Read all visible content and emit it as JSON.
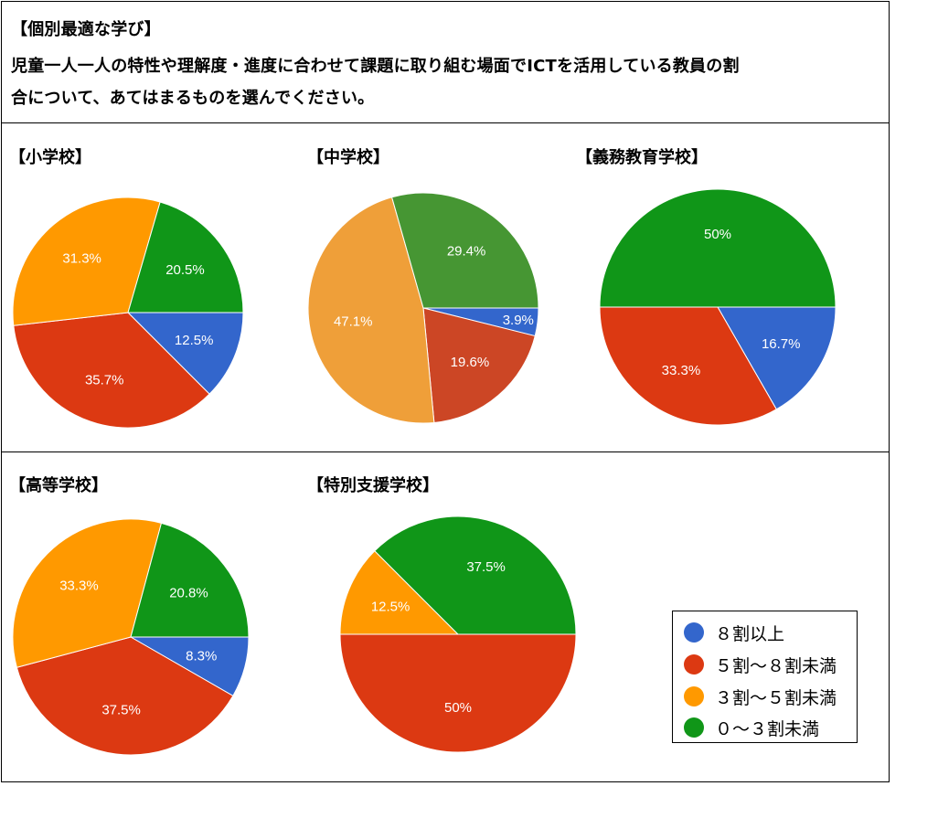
{
  "header": {
    "tag": "【個別最適な学び】",
    "question_line1": "児童一人一人の特性や理解度・進度に合わせて課題に取り組む場面でICTを活用している教員の割",
    "question_line2": "合について、あてはまるものを選んでください。"
  },
  "colors": {
    "blue": "#3366cc",
    "red": "#dc3912",
    "orange": "#ff9900",
    "green": "#109618",
    "ms_orange": "#ef9f39",
    "ms_red": "#cc4625",
    "ms_green": "#469633"
  },
  "legend": {
    "items": [
      {
        "label": "８割以上",
        "color": "#3366cc"
      },
      {
        "label": "５割～８割未満",
        "color": "#dc3912"
      },
      {
        "label": "３割～５割未満",
        "color": "#ff9900"
      },
      {
        "label": "０～３割未満",
        "color": "#109618"
      }
    ]
  },
  "chart_data": [
    {
      "type": "pie",
      "title": "【小学校】",
      "labels": [
        "８割以上",
        "５割～８割未満",
        "３割～５割未満",
        "０～３割未満"
      ],
      "values": [
        12.5,
        35.7,
        31.3,
        20.5
      ],
      "value_labels": [
        "12.5%",
        "35.7%",
        "31.3%",
        "20.5%"
      ],
      "colors": [
        "#3366cc",
        "#dc3912",
        "#ff9900",
        "#109618"
      ]
    },
    {
      "type": "pie",
      "title": "【中学校】",
      "labels": [
        "８割以上",
        "５割～８割未満",
        "３割～５割未満",
        "０～３割未満"
      ],
      "values": [
        3.9,
        19.6,
        47.1,
        29.4
      ],
      "value_labels": [
        "3.9%",
        "19.6%",
        "47.1%",
        "29.4%"
      ],
      "colors": [
        "#3366cc",
        "#cc4625",
        "#ef9f39",
        "#469633"
      ]
    },
    {
      "type": "pie",
      "title": "【義務教育学校】",
      "labels": [
        "８割以上",
        "５割～８割未満",
        "３割～５割未満",
        "０～３割未満"
      ],
      "values": [
        16.7,
        33.3,
        0,
        50
      ],
      "value_labels": [
        "16.7%",
        "33.3%",
        "",
        "50%"
      ],
      "colors": [
        "#3366cc",
        "#dc3912",
        "#ff9900",
        "#109618"
      ]
    },
    {
      "type": "pie",
      "title": "【高等学校】",
      "labels": [
        "８割以上",
        "５割～８割未満",
        "３割～５割未満",
        "０～３割未満"
      ],
      "values": [
        8.3,
        37.5,
        33.3,
        20.8
      ],
      "value_labels": [
        "8.3%",
        "37.5%",
        "33.3%",
        "20.8%"
      ],
      "colors": [
        "#3366cc",
        "#dc3912",
        "#ff9900",
        "#109618"
      ]
    },
    {
      "type": "pie",
      "title": "【特別支援学校】",
      "labels": [
        "８割以上",
        "５割～８割未満",
        "３割～５割未満",
        "０～３割未満"
      ],
      "values": [
        0,
        50,
        12.5,
        37.5
      ],
      "value_labels": [
        "",
        "50%",
        "12.5%",
        "37.5%"
      ],
      "colors": [
        "#3366cc",
        "#dc3912",
        "#ff9900",
        "#109618"
      ]
    }
  ]
}
